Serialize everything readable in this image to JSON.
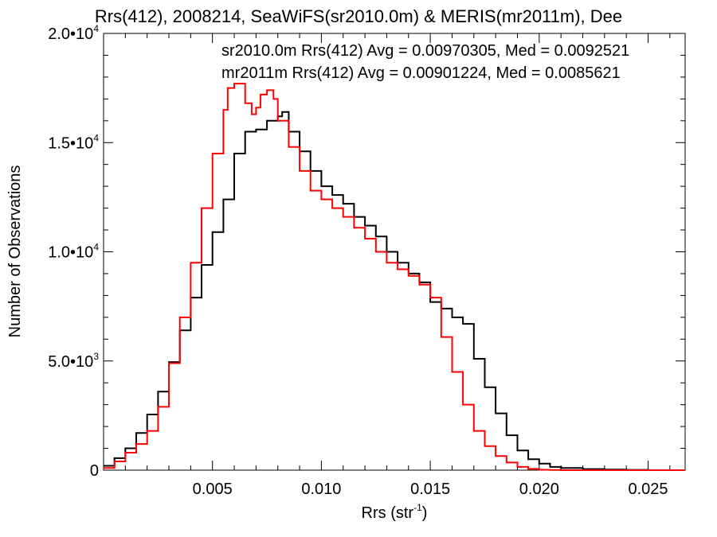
{
  "chart_data": {
    "type": "line",
    "title": "Rrs(412), 2008214, SeaWiFS(sr2010.0m) & MERIS(mr2011m), Dee",
    "xlabel": "Rrs (str",
    "xlabel_sup": "-1",
    "xlabel_close": ")",
    "ylabel": "Number of Observations",
    "xlim": [
      0.0,
      0.0267
    ],
    "ylim": [
      0,
      20000
    ],
    "xticks": [
      {
        "value": 0.005,
        "label": "0.005"
      },
      {
        "value": 0.01,
        "label": "0.010"
      },
      {
        "value": 0.015,
        "label": "0.015"
      },
      {
        "value": 0.02,
        "label": "0.020"
      },
      {
        "value": 0.025,
        "label": "0.025"
      }
    ],
    "yticks": [
      {
        "value": 0,
        "mant": "0",
        "exp": ""
      },
      {
        "value": 5000,
        "mant": "5.0•10",
        "exp": "3"
      },
      {
        "value": 10000,
        "mant": "1.0•10",
        "exp": "4"
      },
      {
        "value": 15000,
        "mant": "1.5•10",
        "exp": "4"
      },
      {
        "value": 20000,
        "mant": "2.0•10",
        "exp": "4"
      }
    ],
    "legend_placement": "top",
    "grid": false,
    "series": [
      {
        "name": "sr2010.0m Rrs(412) Avg = 0.00970305, Med = 0.0092521",
        "color": "#000000",
        "x": [
          0.0,
          0.0005,
          0.001,
          0.0015,
          0.002,
          0.0025,
          0.003,
          0.0035,
          0.004,
          0.0045,
          0.005,
          0.0055,
          0.006,
          0.0065,
          0.007,
          0.0075,
          0.008,
          0.0082,
          0.0085,
          0.009,
          0.0095,
          0.01,
          0.0105,
          0.011,
          0.0115,
          0.012,
          0.0125,
          0.013,
          0.0135,
          0.014,
          0.0145,
          0.015,
          0.0155,
          0.016,
          0.0165,
          0.017,
          0.0175,
          0.018,
          0.0185,
          0.019,
          0.0195,
          0.02,
          0.0205,
          0.021,
          0.022,
          0.023,
          0.024,
          0.025,
          0.0267
        ],
        "y": [
          200,
          550,
          1000,
          1700,
          2550,
          3600,
          4950,
          6400,
          7900,
          9400,
          10900,
          12400,
          14500,
          15500,
          15600,
          16000,
          16200,
          16400,
          15500,
          14600,
          13700,
          13000,
          12600,
          12200,
          11600,
          11200,
          10700,
          10000,
          9500,
          9000,
          8600,
          7700,
          7400,
          7000,
          6700,
          5100,
          3800,
          2600,
          1600,
          900,
          500,
          300,
          150,
          100,
          50,
          30,
          15,
          0,
          0
        ]
      },
      {
        "name": "mr2011m Rrs(412) Avg = 0.00901224, Med = 0.0085621",
        "color": "#ff0000",
        "x": [
          0.0,
          0.0005,
          0.001,
          0.0015,
          0.002,
          0.0025,
          0.003,
          0.0035,
          0.004,
          0.0045,
          0.005,
          0.0055,
          0.0057,
          0.006,
          0.0065,
          0.0068,
          0.007,
          0.0072,
          0.0075,
          0.0078,
          0.008,
          0.0085,
          0.009,
          0.0095,
          0.01,
          0.0105,
          0.011,
          0.0115,
          0.012,
          0.0125,
          0.013,
          0.0135,
          0.014,
          0.0145,
          0.015,
          0.0155,
          0.016,
          0.0165,
          0.017,
          0.0175,
          0.018,
          0.0185,
          0.019,
          0.0195,
          0.02,
          0.0205,
          0.021,
          0.022,
          0.023,
          0.0267
        ],
        "y": [
          100,
          400,
          800,
          1200,
          1800,
          2900,
          4900,
          7000,
          9500,
          12000,
          14500,
          16500,
          17500,
          17700,
          16800,
          16300,
          16600,
          17200,
          17400,
          17000,
          16000,
          14800,
          13700,
          12800,
          12400,
          12000,
          11600,
          11100,
          10600,
          10000,
          9500,
          9200,
          8900,
          8500,
          7900,
          6100,
          4500,
          3000,
          1800,
          1100,
          650,
          350,
          150,
          60,
          20,
          10,
          0,
          0,
          0,
          0
        ]
      }
    ]
  }
}
